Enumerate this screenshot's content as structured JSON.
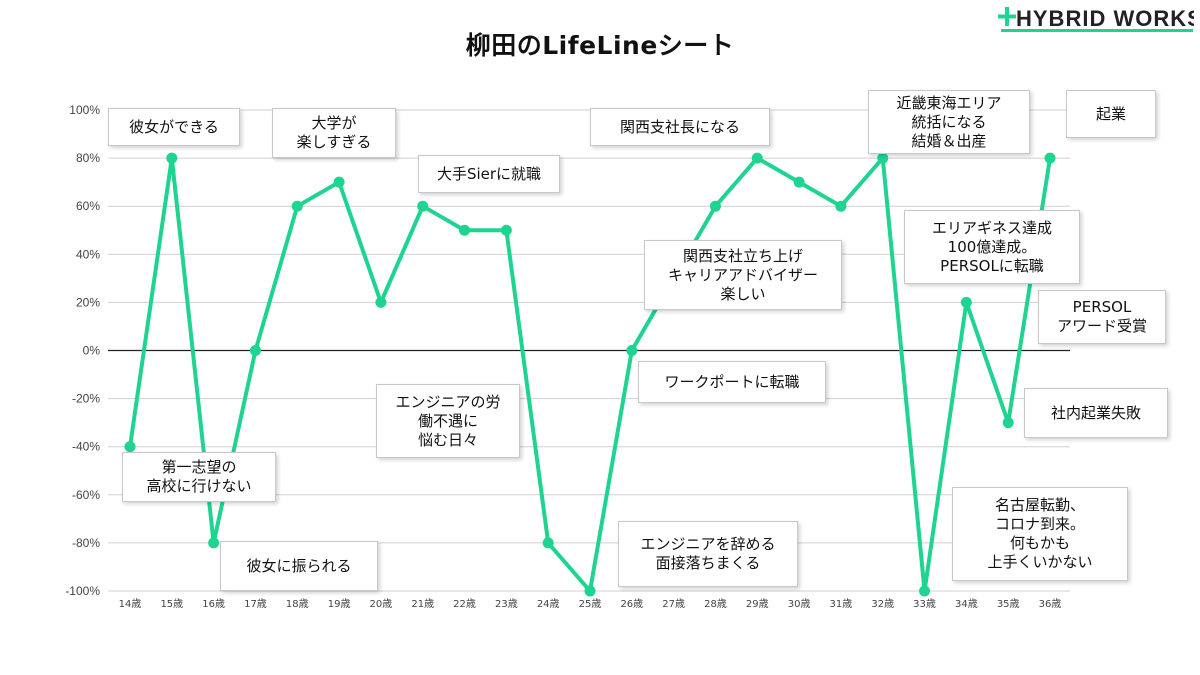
{
  "logo": {
    "text": "HYBRID WORKS",
    "color": "#1fd490"
  },
  "chart_data": {
    "type": "line",
    "title": "柳田のLifeLineシート",
    "x": [
      "14歳",
      "15歳",
      "16歳",
      "17歳",
      "18歳",
      "19歳",
      "20歳",
      "21歳",
      "22歳",
      "23歳",
      "24歳",
      "25歳",
      "26歳",
      "27歳",
      "28歳",
      "29歳",
      "30歳",
      "31歳",
      "32歳",
      "33歳",
      "34歳",
      "35歳",
      "36歳"
    ],
    "series": [
      {
        "values": [
          -40,
          80,
          -80,
          0,
          60,
          70,
          20,
          60,
          50,
          50,
          -80,
          -100,
          0,
          30,
          60,
          80,
          70,
          60,
          80,
          -100,
          20,
          -30,
          80
        ]
      }
    ],
    "ylim": [
      -100,
      100
    ],
    "yticks": [
      100,
      80,
      60,
      40,
      20,
      0,
      -20,
      -40,
      -60,
      -80,
      -100
    ],
    "ytick_labels": [
      "100%",
      "80%",
      "60%",
      "40%",
      "20%",
      "0%",
      "-20%",
      "-40%",
      "-60%",
      "-80%",
      "-100%"
    ],
    "line_color": "#1fd490",
    "grid": true,
    "annotations": [
      {
        "text": "彼女ができる",
        "age": "15歳"
      },
      {
        "text": "大学が\n楽しすぎる",
        "age": "19歳"
      },
      {
        "text": "大手Sierに就職",
        "age": "21歳"
      },
      {
        "text": "関西支社長になる",
        "age": "29歳"
      },
      {
        "text": "近畿東海エリア\n統括になる\n結婚＆出産",
        "age": "32歳"
      },
      {
        "text": "起業",
        "age": "36歳"
      },
      {
        "text": "エリアギネス達成\n100億達成。\nPERSOLに転職",
        "age": "34歳"
      },
      {
        "text": "PERSOL\nアワード受賞",
        "age": "36歳"
      },
      {
        "text": "関西支社立ち上げ\nキャリアアドバイザー\n楽しい",
        "age": "27歳"
      },
      {
        "text": "ワークポートに転職",
        "age": "26歳"
      },
      {
        "text": "エンジニアの労\n働不遇に\n悩む日々",
        "age": "23歳"
      },
      {
        "text": "第一志望の\n高校に行けない",
        "age": "14歳"
      },
      {
        "text": "彼女に振られる",
        "age": "16歳"
      },
      {
        "text": "エンジニアを辞める\n面接落ちまくる",
        "age": "25歳"
      },
      {
        "text": "社内起業失敗",
        "age": "35歳"
      },
      {
        "text": "名古屋転勤、\nコロナ到来。\n何もかも\n上手くいかない",
        "age": "33歳"
      }
    ]
  }
}
